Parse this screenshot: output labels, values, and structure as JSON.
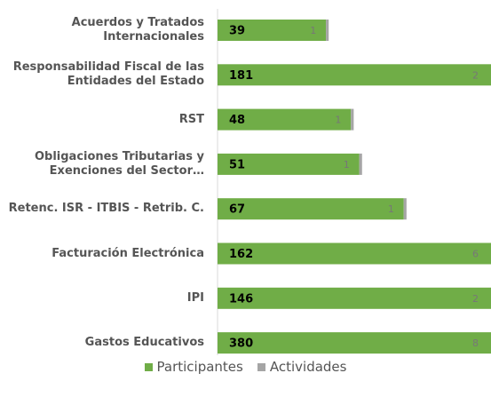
{
  "chart_data": {
    "type": "bar",
    "orientation": "horizontal",
    "stacked": true,
    "categories": [
      "Acuerdos y Tratados Internacionales",
      "Responsabilidad Fiscal de las Entidades del Estado",
      "RST",
      "Obligaciones Tributarias y Exenciones del Sector…",
      "Retenc. ISR - ITBIS - Retrib. C.",
      "Facturación Electrónica",
      "IPI",
      "Gastos Educativos"
    ],
    "series": [
      {
        "name": "Participantes",
        "color": "#70ad47",
        "values": [
          39,
          181,
          48,
          51,
          67,
          162,
          146,
          380
        ]
      },
      {
        "name": "Actividades",
        "color": "#a5a5a5",
        "values": [
          1,
          2,
          1,
          1,
          1,
          6,
          2,
          8
        ]
      }
    ],
    "legend": "bottom"
  }
}
